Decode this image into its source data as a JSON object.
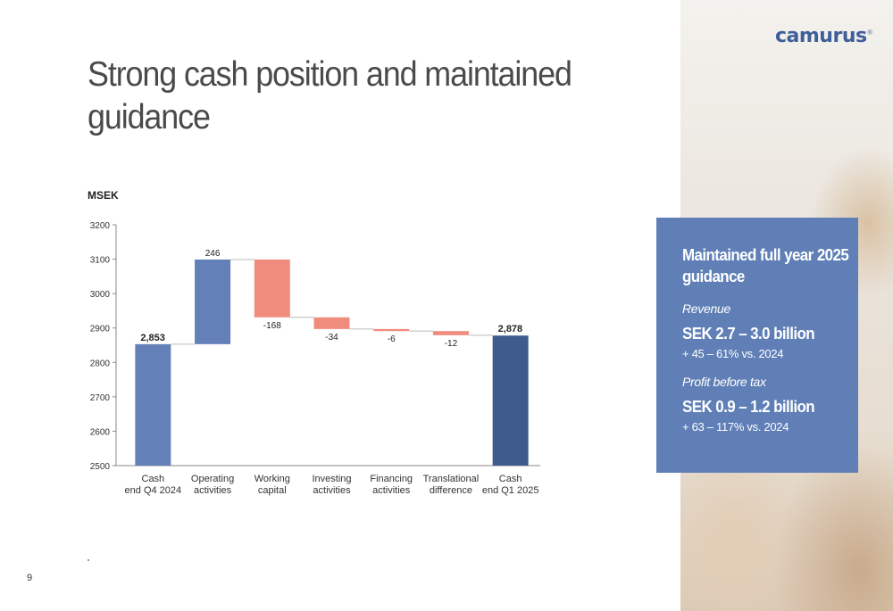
{
  "brand": {
    "logo_text": "camurus",
    "logo_mark": "®"
  },
  "slide": {
    "title": "Strong cash position and maintained guidance",
    "page_number": "9"
  },
  "chart_data": {
    "type": "waterfall",
    "unit_label": "MSEK",
    "ylim": [
      2500,
      3200
    ],
    "yticks": [
      2500,
      2600,
      2700,
      2800,
      2900,
      3000,
      3100,
      3200
    ],
    "categories": [
      [
        "Cash",
        "end Q4 2024"
      ],
      [
        "Operating",
        "activities"
      ],
      [
        "Working",
        "capital"
      ],
      [
        "Investing",
        "activities"
      ],
      [
        "Financing",
        "activities"
      ],
      [
        "Translational",
        "difference"
      ],
      [
        "Cash",
        "end Q1 2025"
      ]
    ],
    "steps": [
      {
        "kind": "total",
        "value": 2853,
        "label": "2,853"
      },
      {
        "kind": "delta",
        "value": 246,
        "label": "246"
      },
      {
        "kind": "delta",
        "value": -168,
        "label": "-168"
      },
      {
        "kind": "delta",
        "value": -34,
        "label": "-34"
      },
      {
        "kind": "delta",
        "value": -6,
        "label": "-6"
      },
      {
        "kind": "delta",
        "value": -12,
        "label": "-12"
      },
      {
        "kind": "total",
        "value": 2878,
        "label": "2,878"
      }
    ],
    "colors": {
      "total_start": "#6480b8",
      "increase": "#6480b8",
      "decrease": "#f08c7e",
      "total_end": "#3f5a8c",
      "axis": "#888888",
      "connector": "#bbbbbb"
    }
  },
  "guidance": {
    "heading": "Maintained full year 2025 guidance",
    "revenue_label": "Revenue",
    "revenue_value": "SEK 2.7 – 3.0 billion",
    "revenue_growth": "+ 45 – 61% vs. 2024",
    "profit_label": "Profit before tax",
    "profit_value": "SEK 0.9 – 1.2 billion",
    "profit_growth": "+ 63 – 117% vs. 2024"
  }
}
